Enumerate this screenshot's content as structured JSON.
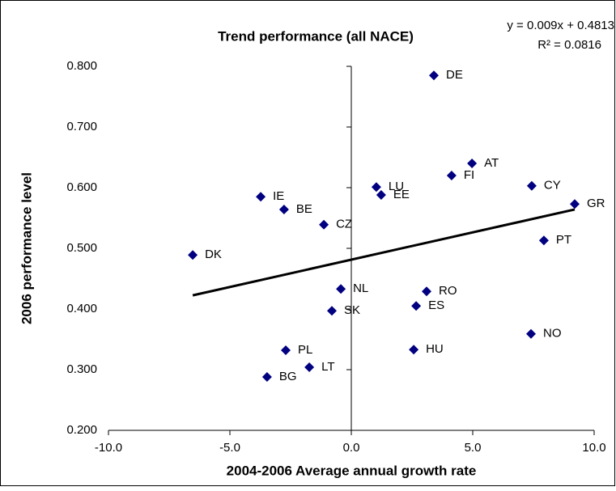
{
  "chart_data": {
    "type": "scatter",
    "title": "Trend performance (all NACE)",
    "x_label": "2004-2006 Average annual growth rate",
    "y_label": "2006 performance level",
    "equation": "y = 0.009x + 0.4813",
    "r_squared": "R² = 0.0816",
    "trendline": {
      "slope": 0.009,
      "intercept": 0.4813
    },
    "series": [
      {
        "color": "#000080",
        "labels": [
          "DE",
          "AT",
          "FI",
          "CY",
          "GR",
          "LU",
          "EE",
          "IE",
          "BE",
          "CZ",
          "DK",
          "PT",
          "NL",
          "RO",
          "ES",
          "SK",
          "NO",
          "HU",
          "PL",
          "LT",
          "BG"
        ],
        "x": [
          3.4,
          4.97,
          4.13,
          7.43,
          9.2,
          1.03,
          1.23,
          -3.73,
          -2.77,
          -1.13,
          -6.53,
          7.93,
          -0.43,
          3.1,
          2.67,
          -0.8,
          7.4,
          2.57,
          -2.7,
          -1.73,
          -3.47
        ],
        "values": [
          0.785,
          0.64,
          0.62,
          0.603,
          0.573,
          0.601,
          0.588,
          0.585,
          0.564,
          0.539,
          0.489,
          0.513,
          0.433,
          0.429,
          0.405,
          0.397,
          0.359,
          0.333,
          0.332,
          0.304,
          0.288
        ]
      }
    ],
    "xlim": [
      -10,
      10
    ],
    "ylim": [
      0.2,
      0.8
    ],
    "xticks": [
      {
        "value": -10,
        "label": "-10.0"
      },
      {
        "value": -5,
        "label": "-5.0"
      },
      {
        "value": 0,
        "label": "0.0"
      },
      {
        "value": 5,
        "label": "5.0"
      },
      {
        "value": 10,
        "label": "10.0"
      }
    ],
    "yticks": [
      {
        "value": 0.2,
        "label": "0.200"
      },
      {
        "value": 0.3,
        "label": "0.300"
      },
      {
        "value": 0.4,
        "label": "0.400"
      },
      {
        "value": 0.5,
        "label": "0.500"
      },
      {
        "value": 0.6,
        "label": "0.600"
      },
      {
        "value": 0.7,
        "label": "0.700"
      },
      {
        "value": 0.8,
        "label": "0.800"
      }
    ]
  }
}
